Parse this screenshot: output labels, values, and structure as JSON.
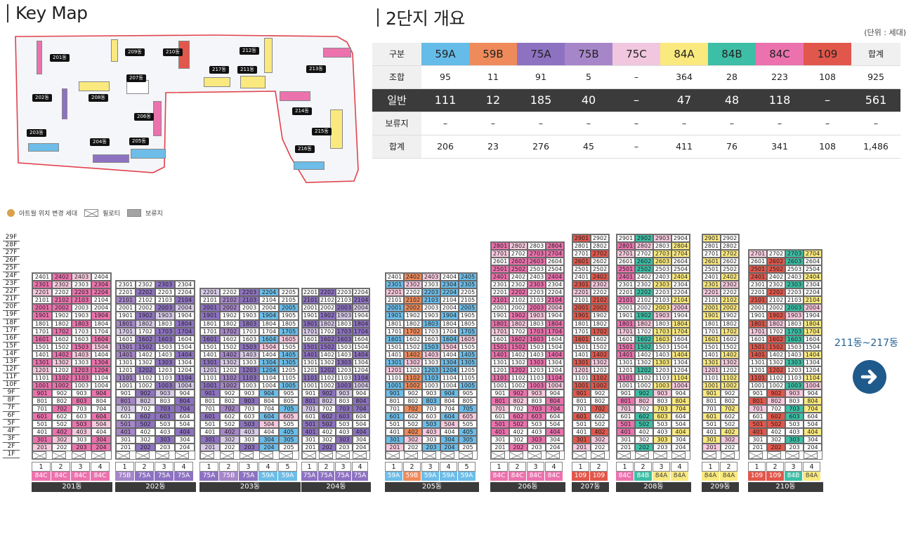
{
  "keymap": {
    "title": "Key Map",
    "labels": [
      "201동",
      "202동",
      "203동",
      "204동",
      "205동",
      "206동",
      "207동",
      "208동",
      "209동",
      "210동",
      "211동",
      "212동",
      "213동",
      "214동",
      "215동",
      "216동",
      "217동"
    ]
  },
  "overview": {
    "title": "2단지 개요",
    "unit": "(단위 : 세대)",
    "header": [
      "구분",
      "59A",
      "59B",
      "75A",
      "75B",
      "75C",
      "84A",
      "84B",
      "84C",
      "109",
      "합계"
    ],
    "header_colors": [
      "#f0f0f0",
      "#65bce8",
      "#ef8a5a",
      "#8e72c2",
      "#a686c9",
      "#f0c7de",
      "#fae97e",
      "#3cbfa6",
      "#ec72ae",
      "#e2574b",
      "#f0f0f0"
    ],
    "rows": [
      {
        "label": "조합",
        "values": [
          "95",
          "11",
          "91",
          "5",
          "–",
          "364",
          "28",
          "223",
          "108",
          "925"
        ],
        "dark": false
      },
      {
        "label": "일반",
        "values": [
          "111",
          "12",
          "185",
          "40",
          "–",
          "47",
          "48",
          "118",
          "–",
          "561"
        ],
        "dark": true
      },
      {
        "label": "보류지",
        "values": [
          "–",
          "–",
          "–",
          "–",
          "–",
          "–",
          "–",
          "–",
          "–",
          "–"
        ],
        "dark": false
      },
      {
        "label": "합계",
        "values": [
          "206",
          "23",
          "276",
          "45",
          "–",
          "411",
          "76",
          "341",
          "108",
          "1,486"
        ],
        "dark": false
      }
    ]
  },
  "legend": {
    "art": "아트월 위치 변경 세대",
    "piloti": "필로티",
    "reserved": "보류지"
  },
  "floors": [
    "29F",
    "28F",
    "27F",
    "26F",
    "25F",
    "24F",
    "23F",
    "22F",
    "21F",
    "20F",
    "19F",
    "18F",
    "17F",
    "16F",
    "15F",
    "14F",
    "13F",
    "12F",
    "11F",
    "10F",
    "9F",
    "8F",
    "7F",
    "6F",
    "5F",
    "4F",
    "3F",
    "2F",
    "1F"
  ],
  "colors": {
    "59A": "#6dbde8",
    "59B": "#ef8a5a",
    "75A": "#8e72c2",
    "75B": "#a686c9",
    "84A": "#fae97e",
    "84B": "#3cbfa6",
    "84C": "#ec72ae",
    "109": "#e2574b",
    "pink_light": "#f6c9dd",
    "purple_light": "#d8cbe8"
  },
  "buildings": [
    {
      "name": "201동",
      "lines": [
        "1",
        "2",
        "3",
        "4"
      ],
      "types": [
        "84C",
        "84C",
        "84C",
        "84C"
      ],
      "top": 24
    },
    {
      "name": "202동",
      "lines": [
        "1",
        "2",
        "3",
        "4"
      ],
      "types": [
        "75B",
        "75A",
        "75A",
        "75A"
      ],
      "top": 23
    },
    {
      "name": "203동",
      "lines": [
        "1",
        "2",
        "3",
        "4",
        "5"
      ],
      "types": [
        "75A",
        "75B",
        "75A",
        "59A",
        "59A"
      ],
      "top": 22
    },
    {
      "name": "204동",
      "lines": [
        "1",
        "2",
        "3",
        "4"
      ],
      "types": [
        "75A",
        "75A",
        "75A",
        "75A"
      ],
      "top": 22
    },
    {
      "name": "205동",
      "lines": [
        "1",
        "2",
        "3",
        "4",
        "5"
      ],
      "types": [
        "59A",
        "59B",
        "59A",
        "59A",
        "59A"
      ],
      "top": 24
    },
    {
      "name": "206동",
      "lines": [
        "1",
        "2",
        "3",
        "4"
      ],
      "types": [
        "84C",
        "84C",
        "84C",
        "84C"
      ],
      "top": 28
    },
    {
      "name": "207동",
      "lines": [
        "1",
        "2"
      ],
      "types": [
        "109",
        "109"
      ],
      "top": 29
    },
    {
      "name": "208동",
      "lines": [
        "1",
        "2",
        "3",
        "4"
      ],
      "types": [
        "84C",
        "84B",
        "84A",
        "84A"
      ],
      "top": 29
    },
    {
      "name": "209동",
      "lines": [
        "1",
        "2"
      ],
      "types": [
        "84A",
        "84A"
      ],
      "top": 29
    },
    {
      "name": "210동",
      "lines": [
        "1",
        "2",
        "3",
        "4"
      ],
      "types": [
        "109",
        "109",
        "84B",
        "84A"
      ],
      "top": 27
    }
  ],
  "nav": {
    "label": "211동~217동"
  }
}
